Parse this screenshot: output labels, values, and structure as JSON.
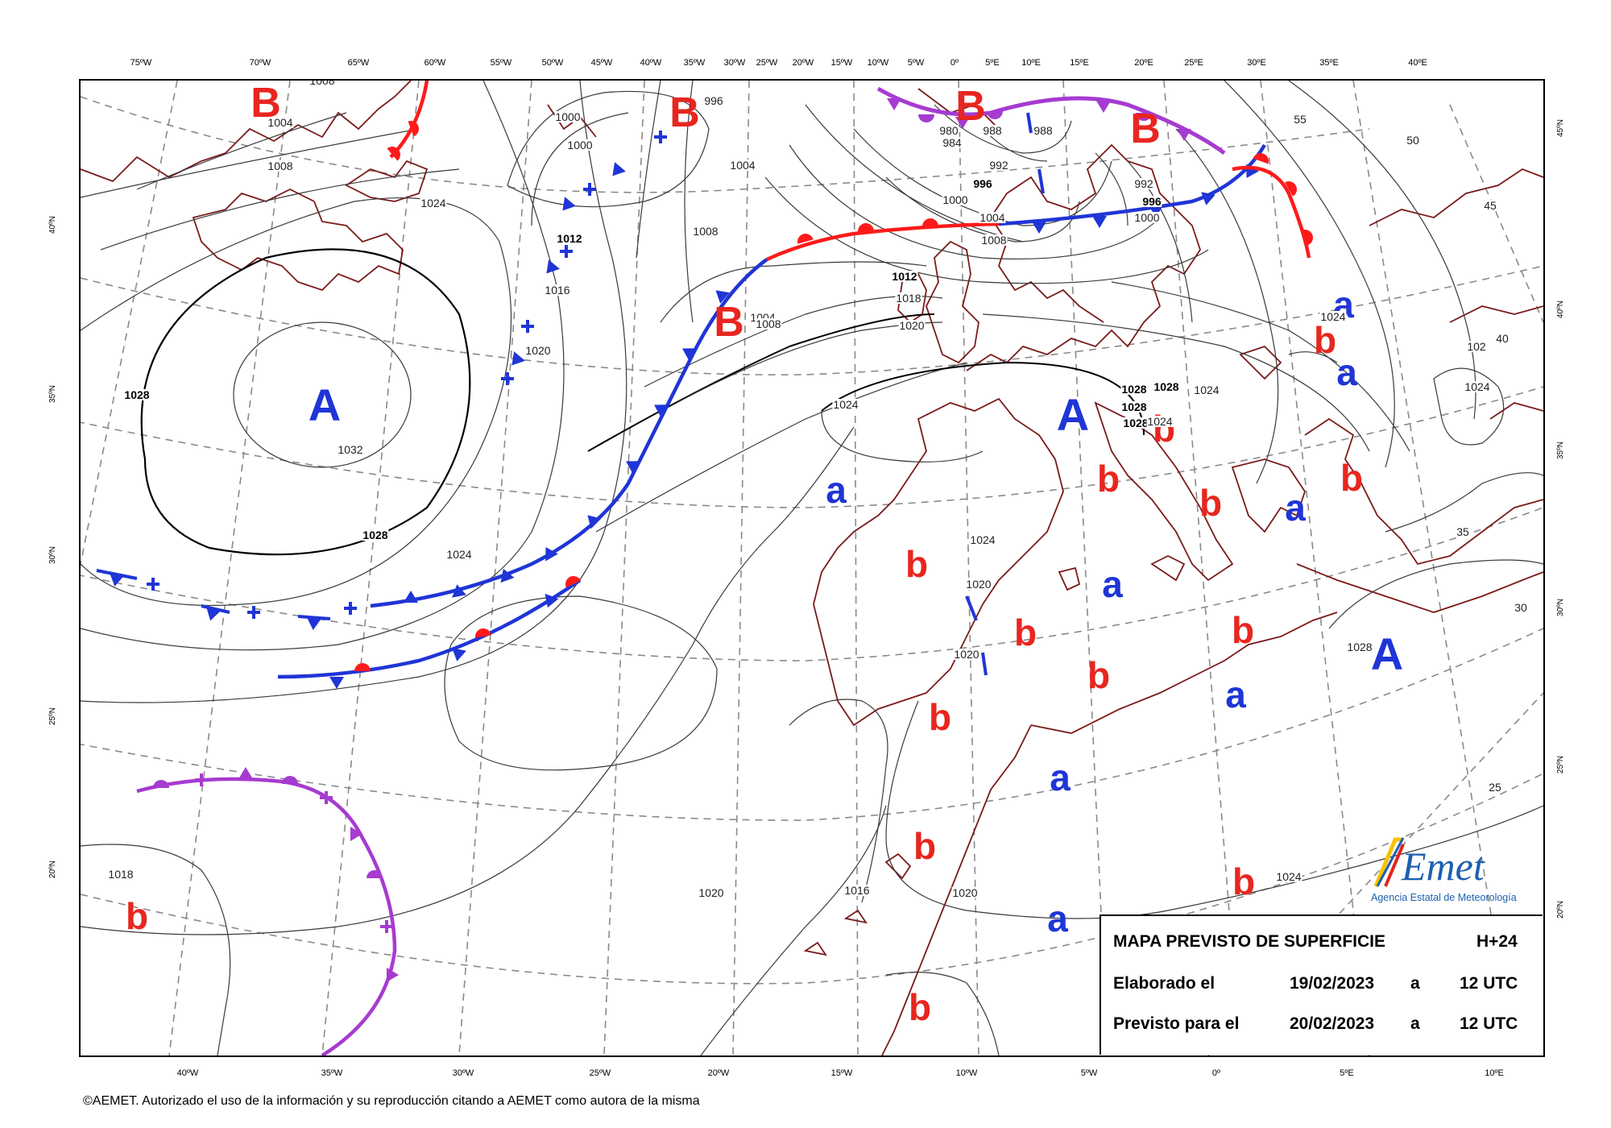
{
  "map": {
    "lon_labels_top": [
      "75ºW",
      "70ºW",
      "65ºW",
      "60ºW",
      "55ºW",
      "50ºW",
      "45ºW",
      "40ºW",
      "35ºW",
      "30ºW",
      "25ºW",
      "20ºW",
      "15ºW",
      "10ºW",
      "5ºW",
      "0º",
      "5ºE",
      "10ºE",
      "15ºE",
      "20ºE",
      "25ºE",
      "30ºE",
      "35ºE",
      "40ºE"
    ],
    "lon_labels_bottom": [
      "40ºW",
      "35ºW",
      "30ºW",
      "25ºW",
      "20ºW",
      "15ºW",
      "10ºW",
      "5ºW",
      "0º",
      "5ºE",
      "10ºE"
    ],
    "lat_labels_left": [
      "40ºN",
      "35ºN",
      "30ºN",
      "25ºN",
      "20ºN"
    ],
    "lat_labels_right": [
      "45ºN",
      "40ºN",
      "35ºN",
      "30ºN",
      "25ºN",
      "20ºN"
    ],
    "pressure_systems": [
      {
        "letter": "B"
      },
      {
        "letter": "B"
      },
      {
        "letter": "B"
      },
      {
        "letter": "B"
      },
      {
        "letter": "B"
      },
      {
        "letter": "A"
      },
      {
        "letter": "A"
      },
      {
        "letter": "A"
      },
      {
        "letter": "a"
      },
      {
        "letter": "a"
      },
      {
        "letter": "a"
      },
      {
        "letter": "a"
      },
      {
        "letter": "a"
      },
      {
        "letter": "a"
      },
      {
        "letter": "a"
      },
      {
        "letter": "a"
      },
      {
        "letter": "b"
      },
      {
        "letter": "b"
      },
      {
        "letter": "b"
      },
      {
        "letter": "b"
      },
      {
        "letter": "b"
      },
      {
        "letter": "b"
      },
      {
        "letter": "b"
      },
      {
        "letter": "b"
      },
      {
        "letter": "b"
      },
      {
        "letter": "b"
      },
      {
        "letter": "b"
      },
      {
        "letter": "b"
      },
      {
        "letter": "b"
      },
      {
        "letter": "b"
      }
    ],
    "isobar_labels": [
      "1008",
      "1004",
      "1008",
      "1024",
      "1000",
      "1000",
      "996",
      "1004",
      "1008",
      "1012",
      "1016",
      "1020",
      "1028",
      "1032",
      "1028",
      "1024",
      "1004",
      "1008",
      "1012",
      "1018",
      "1020",
      "1024",
      "1028",
      "1028",
      "1028",
      "1024",
      "1028",
      "1024",
      "980",
      "984",
      "988",
      "992",
      "996",
      "1000",
      "1004",
      "1008",
      "988",
      "992",
      "996",
      "1000",
      "1024",
      "1024",
      "1020",
      "1020",
      "1016",
      "1018",
      "1028",
      "1020",
      "1020",
      "1024",
      "1028",
      "55",
      "50",
      "45",
      "40",
      "35",
      "30",
      "25",
      "102",
      "1024"
    ],
    "colors": {
      "cold_front": "#1f35d6",
      "warm_front": "#ff1a1a",
      "occluded_front": "#a63bd0",
      "coast": "#7a1a1a",
      "isobar": "#333333",
      "graticule": "#888888"
    }
  },
  "legend": {
    "title": "MAPA PREVISTO DE SUPERFICIE",
    "lead": "H+24",
    "made_label": "Elaborado el",
    "made_date": "19/02/2023",
    "made_a": "a",
    "made_time": "12 UTC",
    "valid_label": "Previsto para el",
    "valid_date": "20/02/2023",
    "valid_a": "a",
    "valid_time": "12 UTC"
  },
  "logo": {
    "mark": "AEmet",
    "caption": "Agencia Estatal de Meteorología"
  },
  "copyright": "©AEMET. Autorizado el uso de la información y su reproducción citando a AEMET como autora de la misma"
}
